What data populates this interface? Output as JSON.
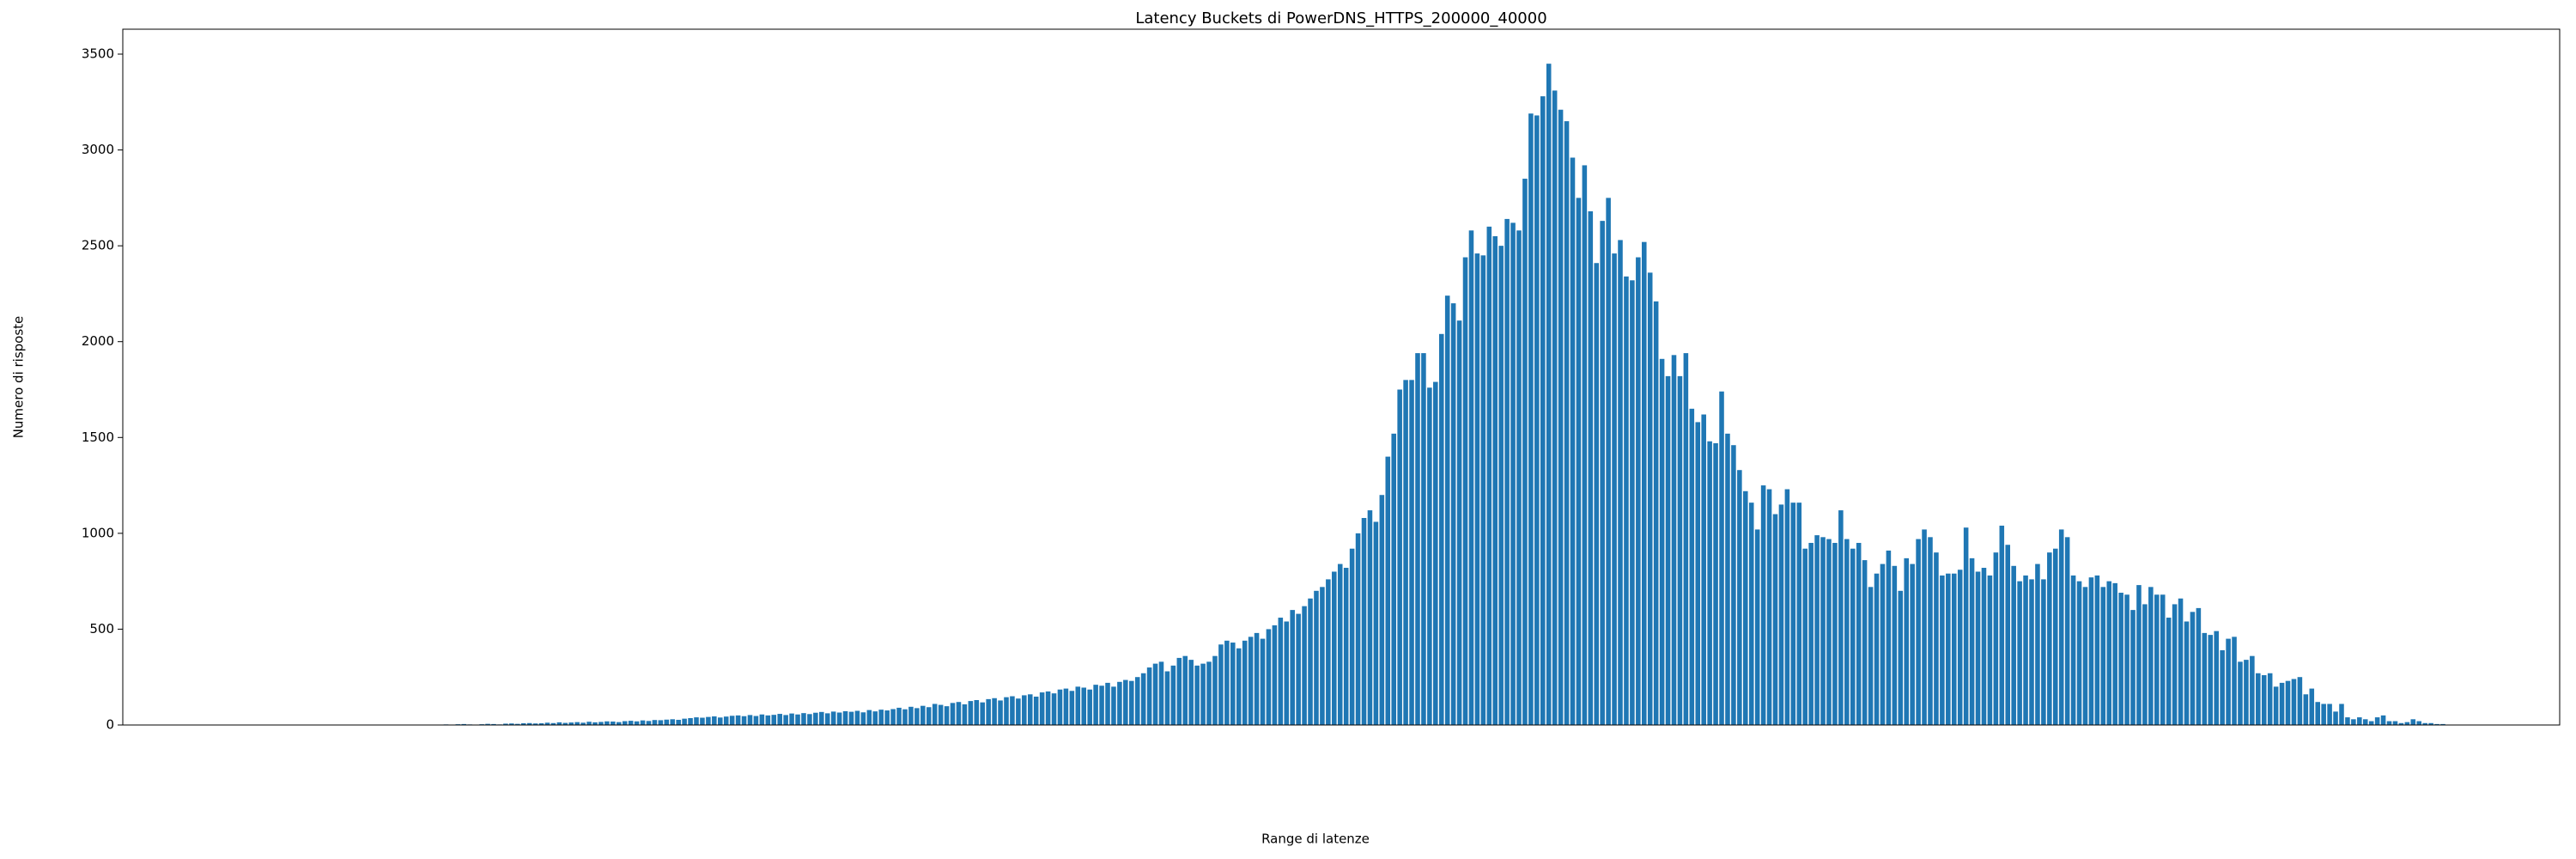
{
  "chart_data": {
    "type": "bar",
    "title": "Latency Buckets di PowerDNS_HTTPS_200000_40000",
    "x_label": "Range di latenze",
    "y_label": "Numero di risposte",
    "color": "#1f77b4",
    "grid": false,
    "ylim": [
      0,
      3630
    ],
    "yticks": [
      0,
      500,
      1000,
      1500,
      2000,
      2500,
      3000,
      3500
    ],
    "categories": [
      null,
      null,
      null,
      null,
      null,
      null,
      null,
      null,
      null,
      null,
      null,
      null,
      null,
      null,
      null,
      null,
      null,
      null,
      null,
      null,
      null,
      null,
      null,
      null,
      null,
      null,
      null,
      null,
      null,
      null,
      null,
      null,
      null,
      null,
      null,
      null,
      null,
      null,
      null,
      null,
      null,
      null,
      null,
      null,
      null,
      null,
      null,
      null,
      null,
      null,
      null,
      null,
      null,
      null,
      null,
      null,
      null,
      null,
      null,
      null,
      null,
      null,
      null,
      null,
      null,
      null,
      null,
      null,
      null,
      null,
      null,
      null,
      null,
      null,
      null,
      null,
      null,
      null,
      null,
      null,
      null,
      null,
      null,
      null,
      null,
      null,
      null,
      null,
      null,
      null,
      null,
      null,
      null,
      null,
      null,
      null,
      null,
      null,
      null,
      null,
      null,
      null,
      null,
      null,
      null,
      null,
      null,
      null,
      null,
      null,
      null,
      null,
      null,
      null,
      null,
      null,
      null,
      null,
      null,
      null,
      null,
      null,
      null,
      null,
      null,
      null,
      null,
      null,
      null,
      null,
      null,
      null,
      null,
      null,
      null,
      null,
      null,
      null,
      null,
      null,
      null,
      null,
      null,
      null,
      null,
      null,
      null,
      null,
      null,
      null,
      null,
      null,
      null,
      null,
      null,
      null,
      null,
      null,
      null,
      null,
      null,
      null,
      null,
      null,
      null,
      null,
      null,
      null,
      null,
      null,
      null,
      null,
      null,
      null,
      null,
      null,
      null,
      null,
      null,
      null,
      null,
      null,
      null,
      null,
      null,
      null,
      null,
      null,
      null,
      null,
      null,
      null,
      null,
      null,
      null,
      null,
      null,
      null,
      null,
      null,
      null,
      null,
      null,
      null,
      null,
      null,
      null,
      null,
      null,
      null,
      null,
      null,
      null,
      null,
      null,
      null,
      null,
      null,
      null,
      null,
      null,
      null,
      null,
      null,
      null,
      null,
      null,
      null,
      null,
      null,
      null,
      null,
      null,
      null,
      null,
      null,
      null,
      null,
      null,
      null,
      null,
      null,
      null,
      null,
      null,
      null,
      null,
      null,
      null,
      null,
      null,
      null,
      null,
      null,
      null,
      null,
      null,
      null,
      null,
      null,
      null,
      null,
      null,
      null,
      null,
      null,
      null,
      null,
      null,
      null,
      null,
      null,
      null,
      null,
      null,
      null,
      null,
      null,
      null,
      null,
      null,
      null,
      null,
      null,
      null,
      null,
      null,
      null,
      null,
      null,
      null,
      null,
      null,
      null,
      null,
      null,
      null,
      null,
      null,
      null,
      null,
      null,
      null,
      null,
      null,
      null,
      null,
      null,
      null,
      null,
      null,
      null,
      null,
      null,
      null,
      null,
      null,
      null,
      null,
      null,
      null,
      null,
      null,
      null,
      null,
      null,
      null,
      null,
      null,
      null,
      null,
      null,
      null,
      null,
      null,
      null,
      null,
      null,
      null,
      null,
      null,
      null,
      null,
      null,
      null,
      null,
      null,
      null,
      null,
      null,
      null,
      null,
      null,
      null,
      null,
      null,
      null,
      null,
      null,
      null,
      null,
      null,
      null,
      null,
      null,
      null,
      null,
      null,
      null,
      null,
      null,
      null,
      null,
      null,
      null,
      null,
      null,
      null,
      null,
      null
    ],
    "values": [
      0,
      0,
      0,
      0,
      0,
      0,
      0,
      0,
      0,
      0,
      0,
      0,
      0,
      0,
      0,
      0,
      0,
      0,
      0,
      0,
      0,
      0,
      0,
      0,
      0,
      0,
      0,
      0,
      0,
      0,
      1,
      0,
      0,
      1,
      0,
      0,
      1,
      1,
      0,
      1,
      1,
      2,
      1,
      2,
      3,
      2,
      4,
      5,
      3,
      2,
      4,
      6,
      5,
      3,
      7,
      8,
      6,
      9,
      10,
      8,
      9,
      12,
      10,
      14,
      11,
      13,
      15,
      12,
      17,
      14,
      16,
      19,
      18,
      15,
      20,
      22,
      19,
      24,
      21,
      26,
      25,
      28,
      30,
      27,
      33,
      36,
      40,
      38,
      42,
      45,
      39,
      44,
      48,
      50,
      46,
      52,
      47,
      55,
      50,
      53,
      58,
      52,
      60,
      55,
      62,
      57,
      64,
      68,
      61,
      70,
      65,
      72,
      69,
      74,
      66,
      78,
      71,
      80,
      76,
      83,
      90,
      82,
      95,
      88,
      100,
      93,
      110,
      105,
      98,
      115,
      120,
      108,
      125,
      130,
      118,
      135,
      140,
      128,
      145,
      150,
      138,
      155,
      160,
      148,
      170,
      175,
      165,
      185,
      190,
      178,
      200,
      195,
      185,
      210,
      205,
      220,
      200,
      225,
      235,
      230,
      250,
      270,
      300,
      320,
      330,
      280,
      310,
      350,
      360,
      340,
      310,
      320,
      330,
      360,
      420,
      440,
      430,
      400,
      440,
      460,
      480,
      450,
      500,
      520,
      560,
      540,
      600,
      580,
      620,
      660,
      700,
      720,
      760,
      800,
      840,
      820,
      920,
      1000,
      1080,
      1120,
      1060,
      1200,
      1400,
      1520,
      1750,
      1800,
      1800,
      1940,
      1940,
      1760,
      1790,
      2040,
      2240,
      2200,
      2110,
      2440,
      2580,
      2460,
      2450,
      2600,
      2550,
      2500,
      2640,
      2620,
      2580,
      2850,
      3190,
      3180,
      3280,
      3450,
      3310,
      3210,
      3150,
      2960,
      2750,
      2920,
      2680,
      2410,
      2630,
      2750,
      2460,
      2530,
      2340,
      2320,
      2440,
      2520,
      2360,
      2210,
      1910,
      1820,
      1930,
      1820,
      1940,
      1650,
      1580,
      1620,
      1480,
      1470,
      1740,
      1520,
      1460,
      1330,
      1220,
      1160,
      1020,
      1250,
      1230,
      1100,
      1150,
      1230,
      1160,
      1160,
      920,
      950,
      990,
      980,
      970,
      950,
      1120,
      970,
      920,
      950,
      860,
      720,
      790,
      840,
      910,
      830,
      700,
      870,
      840,
      970,
      1020,
      980,
      900,
      780,
      790,
      790,
      810,
      1030,
      870,
      800,
      820,
      780,
      900,
      1040,
      940,
      830,
      750,
      780,
      760,
      840,
      760,
      900,
      920,
      1020,
      980,
      780,
      750,
      720,
      770,
      780,
      720,
      750,
      740,
      690,
      680,
      600,
      730,
      630,
      720,
      680,
      680,
      560,
      630,
      660,
      540,
      590,
      610,
      480,
      470,
      490,
      390,
      450,
      460,
      330,
      340,
      360,
      270,
      260,
      270,
      200,
      220,
      230,
      240,
      250,
      160,
      190,
      120,
      110,
      110,
      70,
      110,
      40,
      30,
      40,
      30,
      20,
      40,
      50,
      20,
      20,
      10,
      15,
      30,
      20,
      10,
      10,
      5,
      5
    ]
  }
}
